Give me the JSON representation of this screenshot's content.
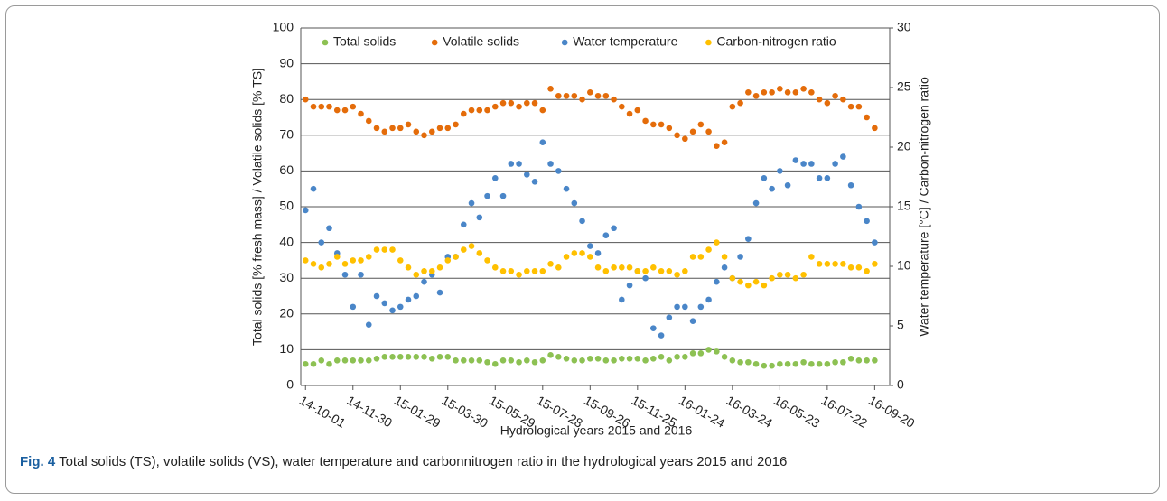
{
  "chart_data": {
    "type": "scatter",
    "xlabel": "Hydrological years 2015 and 2016",
    "ylabel": "Total solids [% fresh mass] / Volatile solids [% TS]",
    "y2label": "Water temperature  [°C]  / Carbon-nitrogen ratio",
    "x": [
      "2014-10-01",
      "2014-10-11",
      "2014-10-21",
      "2014-10-31",
      "2014-11-10",
      "2014-11-20",
      "2014-11-30",
      "2014-12-10",
      "2014-12-20",
      "2014-12-30",
      "2015-01-09",
      "2015-01-19",
      "2015-01-29",
      "2015-02-08",
      "2015-02-18",
      "2015-02-28",
      "2015-03-10",
      "2015-03-20",
      "2015-03-30",
      "2015-04-09",
      "2015-04-19",
      "2015-04-29",
      "2015-05-09",
      "2015-05-19",
      "2015-05-29",
      "2015-06-08",
      "2015-06-18",
      "2015-06-28",
      "2015-07-08",
      "2015-07-18",
      "2015-07-28",
      "2015-08-07",
      "2015-08-17",
      "2015-08-27",
      "2015-09-06",
      "2015-09-16",
      "2015-09-26",
      "2015-10-06",
      "2015-10-16",
      "2015-10-26",
      "2015-11-05",
      "2015-11-15",
      "2015-11-25",
      "2015-12-05",
      "2015-12-15",
      "2015-12-25",
      "2016-01-04",
      "2016-01-14",
      "2016-01-24",
      "2016-02-03",
      "2016-02-13",
      "2016-02-23",
      "2016-03-04",
      "2016-03-14",
      "2016-03-24",
      "2016-04-03",
      "2016-04-13",
      "2016-04-23",
      "2016-05-03",
      "2016-05-13",
      "2016-05-23",
      "2016-06-02",
      "2016-06-12",
      "2016-06-22",
      "2016-07-02",
      "2016-07-12",
      "2016-07-22",
      "2016-08-01",
      "2016-08-11",
      "2016-08-21",
      "2016-08-31",
      "2016-09-10",
      "2016-09-20"
    ],
    "xlim": [
      "2014-09-25",
      "2016-10-09"
    ],
    "xticks": [
      {
        "value": "2014-10-01",
        "label": "14-10-01"
      },
      {
        "value": "2014-11-30",
        "label": "14-11-30"
      },
      {
        "value": "2015-01-29",
        "label": "15-01-29"
      },
      {
        "value": "2015-03-30",
        "label": "15-03-30"
      },
      {
        "value": "2015-05-29",
        "label": "15-05-29"
      },
      {
        "value": "2015-07-28",
        "label": "15-07-28"
      },
      {
        "value": "2015-09-26",
        "label": "15-09-26"
      },
      {
        "value": "2015-11-25",
        "label": "15-11-25"
      },
      {
        "value": "2016-01-24",
        "label": "16-01-24"
      },
      {
        "value": "2016-03-24",
        "label": "16-03-24"
      },
      {
        "value": "2016-05-23",
        "label": "16-05-23"
      },
      {
        "value": "2016-07-22",
        "label": "16-07-22"
      },
      {
        "value": "2016-09-20",
        "label": "16-09-20"
      }
    ],
    "ylim": [
      0,
      100
    ],
    "yticks": [
      0,
      10,
      20,
      30,
      40,
      50,
      60,
      70,
      80,
      90,
      100
    ],
    "y2lim": [
      0,
      30
    ],
    "y2ticks": [
      0,
      5,
      10,
      15,
      20,
      25,
      30
    ],
    "grid": true,
    "legend": "top",
    "series": [
      {
        "name": "Total solids",
        "color": "#8dc153",
        "values": [
          6,
          6,
          7,
          6,
          7,
          7,
          7,
          7,
          7,
          7.5,
          8,
          8,
          8,
          8,
          8,
          8,
          7.5,
          8,
          8,
          7,
          7,
          7,
          7,
          6.5,
          6,
          7,
          7,
          6.5,
          7,
          6.5,
          7,
          8.5,
          8,
          7.5,
          7,
          7,
          7.5,
          7.5,
          7,
          7,
          7.5,
          7.5,
          7.5,
          7,
          7.5,
          8,
          7,
          8,
          8,
          9,
          9,
          10,
          9.5,
          8,
          7,
          6.5,
          6.5,
          6,
          5.5,
          5.5,
          6,
          6,
          6,
          6.5,
          6,
          6,
          6,
          6.5,
          6.5,
          7.5,
          7,
          7,
          7
        ]
      },
      {
        "name": "Volatile solids",
        "color": "#e46c0a",
        "values": [
          80,
          78,
          78,
          78,
          77,
          77,
          78,
          76,
          74,
          72,
          71,
          72,
          72,
          73,
          71,
          70,
          71,
          72,
          72,
          73,
          76,
          77,
          77,
          77,
          78,
          79,
          79,
          78,
          79,
          79,
          77,
          83,
          81,
          81,
          81,
          80,
          82,
          81,
          81,
          80,
          78,
          76,
          77,
          74,
          73,
          73,
          72,
          70,
          69,
          71,
          73,
          71,
          67,
          68,
          78,
          79,
          82,
          81,
          82,
          82,
          83,
          82,
          82,
          83,
          82,
          80,
          79,
          81,
          80,
          78,
          78,
          75,
          72
        ]
      },
      {
        "name": "Water temperature",
        "color": "#4a86c8",
        "axis": "y2",
        "values": [
          14.7,
          16.5,
          12,
          13.2,
          11.1,
          9.3,
          6.6,
          9.3,
          5.1,
          7.5,
          6.9,
          6.3,
          6.6,
          7.2,
          7.5,
          8.7,
          9.3,
          7.8,
          10.8,
          10.8,
          13.5,
          15.3,
          14.1,
          15.9,
          17.4,
          15.9,
          18.6,
          18.6,
          17.7,
          17.1,
          20.4,
          18.6,
          18,
          16.5,
          15.3,
          13.8,
          11.7,
          11.1,
          12.6,
          13.2,
          7.2,
          8.4,
          9.6,
          9,
          4.8,
          4.2,
          5.7,
          6.6,
          6.6,
          5.4,
          6.6,
          7.2,
          8.7,
          9.9,
          9,
          10.8,
          12.3,
          15.3,
          17.4,
          16.5,
          18,
          16.8,
          18.9,
          18.6,
          18.6,
          17.4,
          17.4,
          18.6,
          19.2,
          16.8,
          15,
          13.8,
          12
        ]
      },
      {
        "name": "Carbon-nitrogen ratio",
        "color": "#ffc000",
        "axis": "y2",
        "values": [
          10.5,
          10.2,
          9.9,
          10.2,
          10.8,
          10.2,
          10.5,
          10.5,
          10.8,
          11.4,
          11.4,
          11.4,
          10.5,
          9.9,
          9.3,
          9.6,
          9.6,
          9.9,
          10.5,
          10.8,
          11.4,
          11.7,
          11.1,
          10.5,
          9.9,
          9.6,
          9.6,
          9.3,
          9.6,
          9.6,
          9.6,
          10.2,
          9.9,
          10.8,
          11.1,
          11.1,
          10.8,
          9.9,
          9.6,
          9.9,
          9.9,
          9.9,
          9.6,
          9.6,
          9.9,
          9.6,
          9.6,
          9.3,
          9.6,
          10.8,
          10.8,
          11.4,
          12,
          10.8,
          9,
          8.7,
          8.4,
          8.7,
          8.4,
          9,
          9.3,
          9.3,
          9,
          9.3,
          10.8,
          10.2,
          10.2,
          10.2,
          10.2,
          9.9,
          9.9,
          9.6,
          10.2
        ]
      }
    ]
  },
  "caption": {
    "label": "Fig. 4",
    "text": "Total solids (TS), volatile solids (VS), water temperature and carbonnitrogen ratio in the hydrological years 2015 and 2016"
  }
}
